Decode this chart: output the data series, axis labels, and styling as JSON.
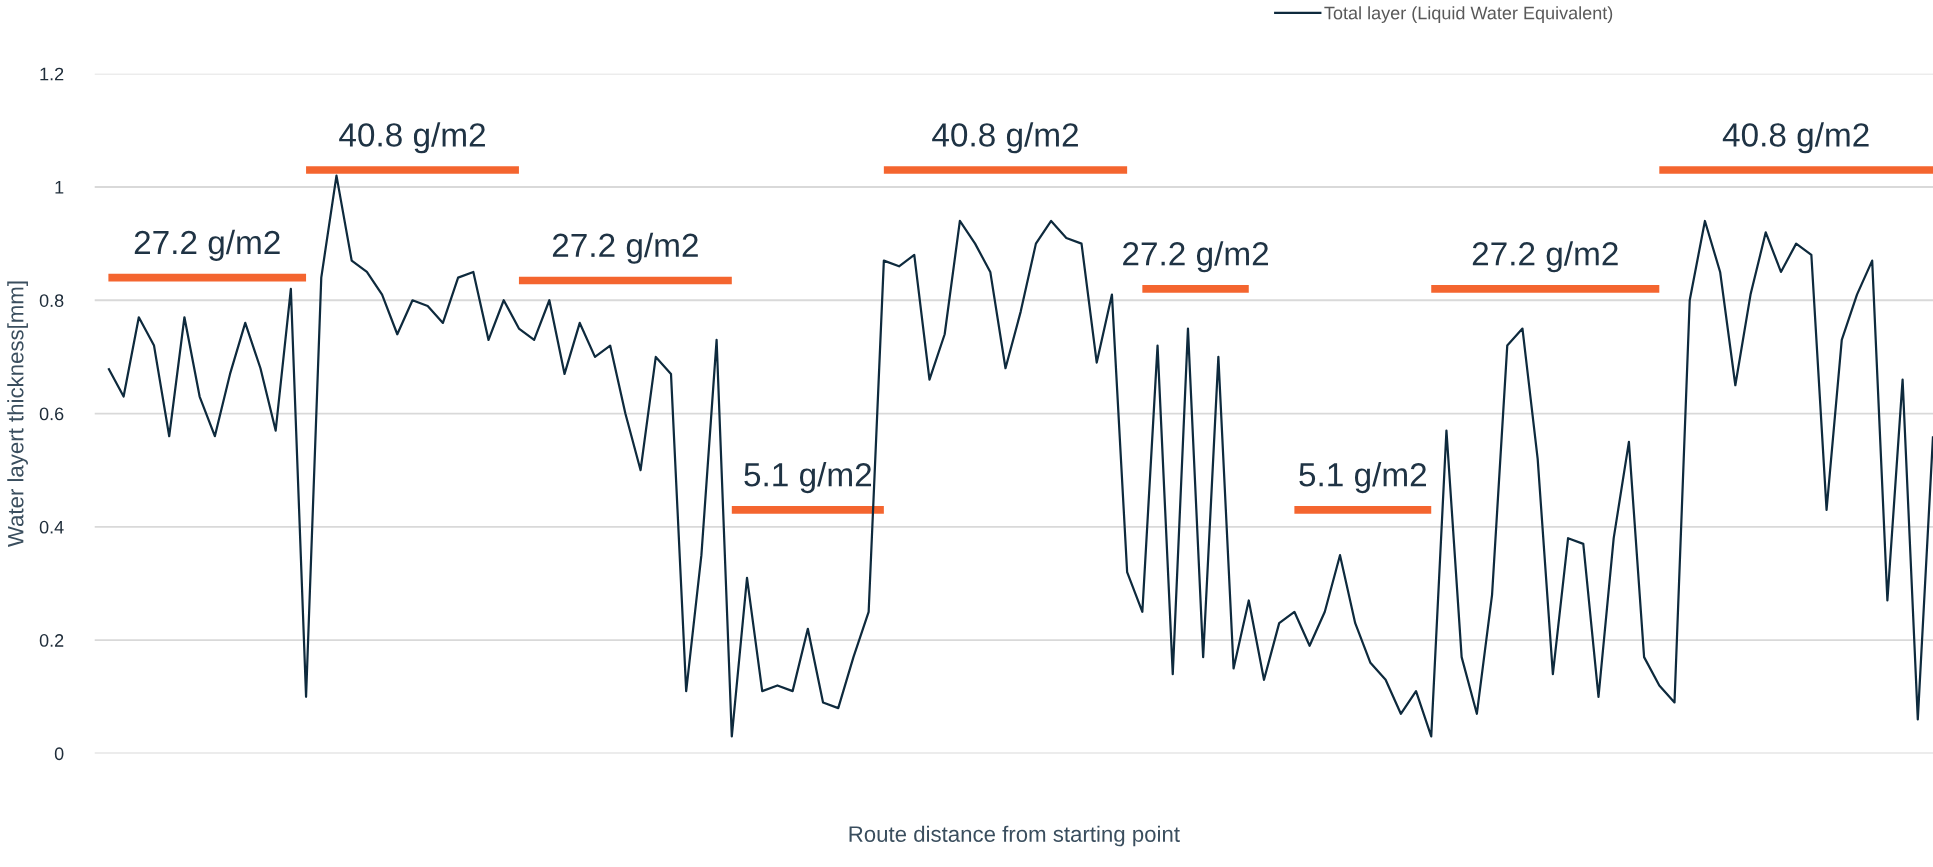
{
  "chart_data": {
    "type": "line",
    "xlabel": "Route distance from starting point",
    "ylabel": "Water layert thickness[mm]",
    "ylim": [
      0,
      1.2
    ],
    "yticks": [
      0,
      0.2,
      0.4,
      0.6,
      0.8,
      1,
      1.2
    ],
    "tick_labels": "y",
    "grid": "y",
    "legend": "top right",
    "line_style": "solid",
    "annotations": [
      "27.2 g/m2",
      "40.8 g/m2",
      "27.2 g/m2",
      "5.1 g/m2",
      "40.8 g/m2",
      "27.2 g/m2",
      "5.1 g/m2",
      "27.2 g/m2",
      "40.8 g/m2"
    ],
    "categories": [
      null,
      null,
      null,
      null,
      null,
      null,
      null,
      null,
      null,
      null,
      null,
      null,
      null,
      null,
      null,
      null,
      null,
      null,
      null,
      null,
      null,
      null,
      null,
      null,
      null,
      null,
      null,
      null,
      null,
      null,
      null,
      null,
      null,
      null,
      null,
      null,
      null,
      null,
      null,
      null,
      null,
      null,
      null,
      null,
      null,
      null,
      null,
      null,
      null,
      null,
      null,
      null,
      null,
      null,
      null,
      null,
      null,
      null,
      null,
      null,
      null,
      null,
      null,
      null,
      null,
      null,
      null,
      null,
      null,
      null,
      null,
      null,
      null,
      null,
      null,
      null,
      null,
      null,
      null,
      null,
      null,
      null,
      null,
      null,
      null,
      null,
      null,
      null,
      null,
      null,
      null,
      null,
      null,
      null,
      null,
      null,
      null,
      null,
      null,
      null,
      null,
      null,
      null,
      null,
      null,
      null,
      null,
      null,
      null,
      null,
      null,
      null,
      null,
      null,
      null,
      null,
      null,
      null,
      null,
      null,
      null
    ],
    "series": [
      {
        "name": "Total layer (Liquid Water Equivalent)",
        "color": "#0e2a3d",
        "values": [
          0.68,
          0.63,
          0.77,
          0.72,
          0.56,
          0.77,
          0.63,
          0.56,
          0.67,
          0.76,
          0.68,
          0.57,
          0.82,
          0.1,
          0.84,
          1.02,
          0.87,
          0.85,
          0.81,
          0.74,
          0.8,
          0.79,
          0.76,
          0.84,
          0.85,
          0.73,
          0.8,
          0.75,
          0.73,
          0.8,
          0.67,
          0.76,
          0.7,
          0.72,
          0.6,
          0.5,
          0.7,
          0.67,
          0.11,
          0.35,
          0.73,
          0.03,
          0.31,
          0.11,
          0.12,
          0.11,
          0.22,
          0.09,
          0.08,
          0.17,
          0.25,
          0.87,
          0.86,
          0.88,
          0.66,
          0.74,
          0.94,
          0.9,
          0.85,
          0.68,
          0.78,
          0.9,
          0.94,
          0.91,
          0.9,
          0.69,
          0.81,
          0.32,
          0.25,
          0.72,
          0.14,
          0.75,
          0.17,
          0.7,
          0.15,
          0.27,
          0.13,
          0.23,
          0.25,
          0.19,
          0.25,
          0.35,
          0.23,
          0.16,
          0.13,
          0.07,
          0.11,
          0.03,
          0.57,
          0.17,
          0.07,
          0.28,
          0.72,
          0.75,
          0.52,
          0.14,
          0.38,
          0.37,
          0.1,
          0.38,
          0.55,
          0.17,
          0.12,
          0.09,
          0.8,
          0.94,
          0.85,
          0.65,
          0.81,
          0.92,
          0.85,
          0.9,
          0.88,
          0.43,
          0.73,
          0.81,
          0.87,
          0.27,
          0.66,
          0.06,
          0.56
        ]
      },
      {
        "type": "line",
        "color": "#f4652f",
        "values": [
          0.84,
          0.84,
          0.84,
          0.84,
          0.84,
          0.84,
          0.84,
          0.84,
          0.84,
          0.84,
          0.84,
          0.84,
          0.84,
          0.84,
          null,
          null,
          null,
          null,
          null,
          null,
          null,
          null,
          null,
          null,
          null,
          null,
          null,
          null,
          null,
          null,
          null,
          null,
          null,
          null,
          null,
          null,
          null,
          null,
          null,
          null,
          null,
          null,
          null,
          null,
          null,
          null,
          null,
          null,
          null,
          null,
          null,
          null,
          null,
          null,
          null,
          null,
          null,
          null,
          null,
          null,
          null,
          null,
          null,
          null,
          null,
          null,
          null,
          null,
          null,
          null,
          null,
          null,
          null,
          null,
          null,
          null,
          null,
          null,
          null,
          null,
          null,
          null,
          null,
          null,
          null,
          null,
          null,
          null,
          null,
          null,
          null,
          null,
          null,
          null,
          null,
          null,
          null,
          null,
          null,
          null,
          null,
          null,
          null,
          null,
          null,
          null,
          null,
          null,
          null,
          null,
          null,
          null,
          null,
          null,
          null,
          null,
          null,
          null,
          null,
          null,
          null
        ]
      },
      {
        "type": "line",
        "color": "#f4652f",
        "values": [
          null,
          null,
          null,
          null,
          null,
          null,
          null,
          null,
          null,
          null,
          null,
          null,
          null,
          1.03,
          1.03,
          1.03,
          1.03,
          1.03,
          1.03,
          1.03,
          1.03,
          1.03,
          1.03,
          1.03,
          1.03,
          1.03,
          1.03,
          1.03,
          null,
          null,
          null,
          null,
          null,
          null,
          null,
          null,
          null,
          null,
          null,
          null,
          null,
          null,
          null,
          null,
          null,
          null,
          null,
          null,
          null,
          null,
          null,
          null,
          null,
          null,
          null,
          null,
          null,
          null,
          null,
          null,
          null,
          null,
          null,
          null,
          null,
          null,
          null,
          null,
          null,
          null,
          null,
          null,
          null,
          null,
          null,
          null,
          null,
          null,
          null,
          null,
          null,
          null,
          null,
          null,
          null,
          null,
          null,
          null,
          null,
          null,
          null,
          null,
          null,
          null,
          null,
          null,
          null,
          null,
          null,
          null,
          null,
          null,
          null,
          null,
          null,
          null,
          null,
          null,
          null,
          null,
          null,
          null,
          null,
          null,
          null,
          null,
          null,
          null,
          null,
          null,
          null
        ]
      },
      {
        "type": "line",
        "color": "#f4652f",
        "values": [
          null,
          null,
          null,
          null,
          null,
          null,
          null,
          null,
          null,
          null,
          null,
          null,
          null,
          null,
          null,
          null,
          null,
          null,
          null,
          null,
          null,
          null,
          null,
          null,
          null,
          null,
          null,
          0.835,
          0.835,
          0.835,
          0.835,
          0.835,
          0.835,
          0.835,
          0.835,
          0.835,
          0.835,
          0.835,
          0.835,
          0.835,
          0.835,
          0.835,
          null,
          null,
          null,
          null,
          null,
          null,
          null,
          null,
          null,
          null,
          null,
          null,
          null,
          null,
          null,
          null,
          null,
          null,
          null,
          null,
          null,
          null,
          null,
          null,
          null,
          null,
          null,
          null,
          null,
          null,
          null,
          null,
          null,
          null,
          null,
          null,
          null,
          null,
          null,
          null,
          null,
          null,
          null,
          null,
          null,
          null,
          null,
          null,
          null,
          null,
          null,
          null,
          null,
          null,
          null,
          null,
          null,
          null,
          null,
          null,
          null,
          null,
          null,
          null,
          null,
          null,
          null,
          null,
          null,
          null,
          null,
          null,
          null,
          null,
          null,
          null,
          null,
          null,
          null
        ]
      },
      {
        "type": "line",
        "color": "#f4652f",
        "values": [
          null,
          null,
          null,
          null,
          null,
          null,
          null,
          null,
          null,
          null,
          null,
          null,
          null,
          null,
          null,
          null,
          null,
          null,
          null,
          null,
          null,
          null,
          null,
          null,
          null,
          null,
          null,
          null,
          null,
          null,
          null,
          null,
          null,
          null,
          null,
          null,
          null,
          null,
          null,
          null,
          null,
          0.43,
          0.43,
          0.43,
          0.43,
          0.43,
          0.43,
          0.43,
          0.43,
          0.43,
          0.43,
          0.43,
          null,
          null,
          null,
          null,
          null,
          null,
          null,
          null,
          null,
          null,
          null,
          null,
          null,
          null,
          null,
          null,
          null,
          null,
          null,
          null,
          null,
          null,
          null,
          null,
          null,
          null,
          null,
          null,
          null,
          null,
          null,
          null,
          null,
          null,
          null,
          null,
          null,
          null,
          null,
          null,
          null,
          null,
          null,
          null,
          null,
          null,
          null,
          null,
          null,
          null,
          null,
          null,
          null,
          null,
          null,
          null,
          null,
          null,
          null,
          null,
          null,
          null,
          null,
          null,
          null,
          null,
          null,
          null,
          null
        ]
      },
      {
        "type": "line",
        "color": "#f4652f",
        "values": [
          null,
          null,
          null,
          null,
          null,
          null,
          null,
          null,
          null,
          null,
          null,
          null,
          null,
          null,
          null,
          null,
          null,
          null,
          null,
          null,
          null,
          null,
          null,
          null,
          null,
          null,
          null,
          null,
          null,
          null,
          null,
          null,
          null,
          null,
          null,
          null,
          null,
          null,
          null,
          null,
          null,
          null,
          null,
          null,
          null,
          null,
          null,
          null,
          null,
          null,
          null,
          1.03,
          1.03,
          1.03,
          1.03,
          1.03,
          1.03,
          1.03,
          1.03,
          1.03,
          1.03,
          1.03,
          1.03,
          1.03,
          1.03,
          1.03,
          1.03,
          1.03,
          null,
          null,
          null,
          null,
          null,
          null,
          null,
          null,
          null,
          null,
          null,
          null,
          null,
          null,
          null,
          null,
          null,
          null,
          null,
          null,
          null,
          null,
          null,
          null,
          null,
          null,
          null,
          null,
          null,
          null,
          null,
          null,
          null,
          null,
          null,
          null,
          null,
          null,
          null,
          null,
          null,
          null,
          null,
          null,
          null,
          null,
          null,
          null,
          null,
          null,
          null,
          null,
          null
        ]
      },
      {
        "type": "line",
        "color": "#f4652f",
        "values": [
          null,
          null,
          null,
          null,
          null,
          null,
          null,
          null,
          null,
          null,
          null,
          null,
          null,
          null,
          null,
          null,
          null,
          null,
          null,
          null,
          null,
          null,
          null,
          null,
          null,
          null,
          null,
          null,
          null,
          null,
          null,
          null,
          null,
          null,
          null,
          null,
          null,
          null,
          null,
          null,
          null,
          null,
          null,
          null,
          null,
          null,
          null,
          null,
          null,
          null,
          null,
          null,
          null,
          null,
          null,
          null,
          null,
          null,
          null,
          null,
          null,
          null,
          null,
          null,
          null,
          null,
          null,
          null,
          0.82,
          0.82,
          0.82,
          0.82,
          0.82,
          0.82,
          0.82,
          0.82,
          null,
          null,
          null,
          null,
          null,
          null,
          null,
          null,
          null,
          null,
          null,
          null,
          null,
          null,
          null,
          null,
          null,
          null,
          null,
          null,
          null,
          null,
          null,
          null,
          null,
          null,
          null,
          null,
          null,
          null,
          null,
          null,
          null,
          null,
          null,
          null,
          null,
          null,
          null,
          null,
          null,
          null,
          null,
          null,
          null
        ]
      },
      {
        "type": "line",
        "color": "#f4652f",
        "values": [
          null,
          null,
          null,
          null,
          null,
          null,
          null,
          null,
          null,
          null,
          null,
          null,
          null,
          null,
          null,
          null,
          null,
          null,
          null,
          null,
          null,
          null,
          null,
          null,
          null,
          null,
          null,
          null,
          null,
          null,
          null,
          null,
          null,
          null,
          null,
          null,
          null,
          null,
          null,
          null,
          null,
          null,
          null,
          null,
          null,
          null,
          null,
          null,
          null,
          null,
          null,
          null,
          null,
          null,
          null,
          null,
          null,
          null,
          null,
          null,
          null,
          null,
          null,
          null,
          null,
          null,
          null,
          null,
          null,
          null,
          null,
          null,
          null,
          null,
          null,
          null,
          null,
          null,
          0.43,
          0.43,
          0.43,
          0.43,
          0.43,
          0.43,
          0.43,
          0.43,
          0.43,
          0.43,
          null,
          null,
          null,
          null,
          null,
          null,
          null,
          null,
          null,
          null,
          null,
          null,
          null,
          null,
          null,
          null,
          null,
          null,
          null,
          null,
          null,
          null,
          null,
          null,
          null,
          null,
          null,
          null,
          null,
          null,
          null,
          null,
          null
        ]
      },
      {
        "type": "line",
        "color": "#f4652f",
        "values": [
          null,
          null,
          null,
          null,
          null,
          null,
          null,
          null,
          null,
          null,
          null,
          null,
          null,
          null,
          null,
          null,
          null,
          null,
          null,
          null,
          null,
          null,
          null,
          null,
          null,
          null,
          null,
          null,
          null,
          null,
          null,
          null,
          null,
          null,
          null,
          null,
          null,
          null,
          null,
          null,
          null,
          null,
          null,
          null,
          null,
          null,
          null,
          null,
          null,
          null,
          null,
          null,
          null,
          null,
          null,
          null,
          null,
          null,
          null,
          null,
          null,
          null,
          null,
          null,
          null,
          null,
          null,
          null,
          null,
          null,
          null,
          null,
          null,
          null,
          null,
          null,
          null,
          null,
          null,
          null,
          null,
          null,
          null,
          null,
          null,
          null,
          null,
          0.82,
          0.82,
          0.82,
          0.82,
          0.82,
          0.82,
          0.82,
          0.82,
          0.82,
          0.82,
          0.82,
          0.82,
          0.82,
          0.82,
          0.82,
          0.82,
          null,
          null,
          null,
          null,
          null,
          null,
          null,
          null,
          null,
          null,
          null,
          null,
          null,
          null,
          null,
          null,
          null,
          null
        ]
      },
      {
        "type": "line",
        "color": "#f4652f",
        "values": [
          null,
          null,
          null,
          null,
          null,
          null,
          null,
          null,
          null,
          null,
          null,
          null,
          null,
          null,
          null,
          null,
          null,
          null,
          null,
          null,
          null,
          null,
          null,
          null,
          null,
          null,
          null,
          null,
          null,
          null,
          null,
          null,
          null,
          null,
          null,
          null,
          null,
          null,
          null,
          null,
          null,
          null,
          null,
          null,
          null,
          null,
          null,
          null,
          null,
          null,
          null,
          null,
          null,
          null,
          null,
          null,
          null,
          null,
          null,
          null,
          null,
          null,
          null,
          null,
          null,
          null,
          null,
          null,
          null,
          null,
          null,
          null,
          null,
          null,
          null,
          null,
          null,
          null,
          null,
          null,
          null,
          null,
          null,
          null,
          null,
          null,
          null,
          null,
          null,
          null,
          null,
          null,
          null,
          null,
          null,
          null,
          null,
          null,
          null,
          null,
          null,
          null,
          1.03,
          1.03,
          1.03,
          1.03,
          1.03,
          1.03,
          1.03,
          1.03,
          1.03,
          1.03,
          1.03,
          1.03,
          1.03,
          1.03,
          1.03,
          1.03,
          1.03,
          1.03,
          1.03
        ]
      }
    ]
  }
}
